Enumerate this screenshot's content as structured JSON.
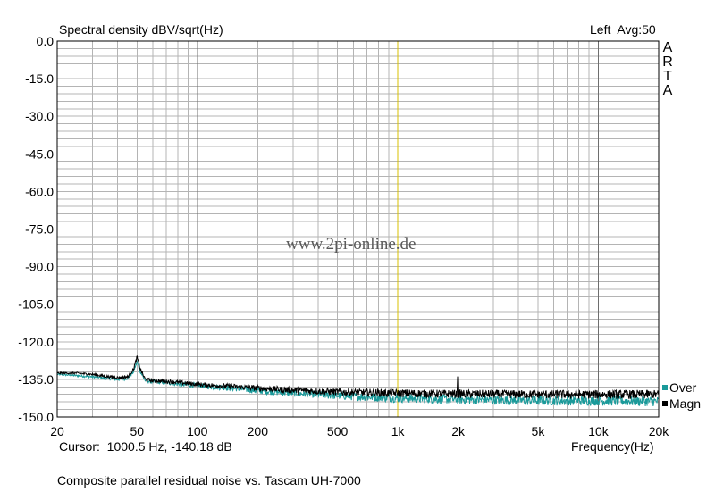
{
  "header": {
    "title": "Spectral density dBV/sqrt(Hz)",
    "channel": "Left  Avg:50"
  },
  "brand": [
    "A",
    "R",
    "T",
    "A"
  ],
  "watermark": "www.2pi-online.de",
  "cursor_readout": "Cursor:  1000.5 Hz, -140.18 dB",
  "caption": "Composite parallel residual noise vs. Tascam UH-7000",
  "legend": {
    "over": {
      "label": "Over",
      "color": "#1a9a9a"
    },
    "magn": {
      "label": "Magn",
      "color": "#000000"
    }
  },
  "colors": {
    "grid": "#b4b4b4",
    "grid_major": "#6e6e6e",
    "cursor": "#d8c000"
  },
  "chart_data": {
    "type": "line",
    "xscale": "log",
    "xlabel": "Frequency(Hz)",
    "ylabel": "Spectral density dBV/sqrt(Hz)",
    "xlim": [
      20,
      20000
    ],
    "ylim": [
      -150,
      0
    ],
    "x_ticks": [
      {
        "v": 20,
        "label": "20"
      },
      {
        "v": 50,
        "label": "50"
      },
      {
        "v": 100,
        "label": "100"
      },
      {
        "v": 200,
        "label": "200"
      },
      {
        "v": 500,
        "label": "500"
      },
      {
        "v": 1000,
        "label": "1k"
      },
      {
        "v": 2000,
        "label": "2k"
      },
      {
        "v": 5000,
        "label": "5k"
      },
      {
        "v": 10000,
        "label": "10k"
      },
      {
        "v": 20000,
        "label": "20k"
      }
    ],
    "y_ticks": [
      {
        "v": 0,
        "label": "0.0"
      },
      {
        "v": -15,
        "label": "-15.0"
      },
      {
        "v": -30,
        "label": "-30.0"
      },
      {
        "v": -45,
        "label": "-45.0"
      },
      {
        "v": -60,
        "label": "-60.0"
      },
      {
        "v": -75,
        "label": "-75.0"
      },
      {
        "v": -90,
        "label": "-90.0"
      },
      {
        "v": -105,
        "label": "-105.0"
      },
      {
        "v": -120,
        "label": "-120.0"
      },
      {
        "v": -135,
        "label": "-135.0"
      },
      {
        "v": -150,
        "label": "-150.0"
      }
    ],
    "cursor_x": 1000.5,
    "grid": true,
    "series": [
      {
        "name": "Over",
        "color": "#1a9a9a",
        "points": [
          [
            20,
            -133.0
          ],
          [
            25,
            -133.5
          ],
          [
            30,
            -134.0
          ],
          [
            35,
            -134.5
          ],
          [
            40,
            -135.0
          ],
          [
            45,
            -134.5
          ],
          [
            48,
            -132.0
          ],
          [
            50,
            -128.0
          ],
          [
            52,
            -132.0
          ],
          [
            55,
            -135.5
          ],
          [
            60,
            -136.0
          ],
          [
            70,
            -136.3
          ],
          [
            80,
            -136.8
          ],
          [
            100,
            -137.5
          ],
          [
            150,
            -138.5
          ],
          [
            200,
            -139.5
          ],
          [
            300,
            -140.5
          ],
          [
            500,
            -141.5
          ],
          [
            1000,
            -142.5
          ],
          [
            2000,
            -143.0
          ],
          [
            5000,
            -143.5
          ],
          [
            10000,
            -143.5
          ],
          [
            20000,
            -143.8
          ]
        ],
        "jitter": [
          [
            20,
            0.3
          ],
          [
            100,
            1.0
          ],
          [
            300,
            1.4
          ],
          [
            1000,
            1.8
          ],
          [
            20000,
            2.0
          ]
        ]
      },
      {
        "name": "Magn",
        "color": "#000000",
        "points": [
          [
            20,
            -132.5
          ],
          [
            25,
            -132.5
          ],
          [
            30,
            -133.0
          ],
          [
            35,
            -133.8
          ],
          [
            40,
            -134.3
          ],
          [
            45,
            -134.0
          ],
          [
            48,
            -131.0
          ],
          [
            50,
            -126.0
          ],
          [
            52,
            -131.0
          ],
          [
            55,
            -135.0
          ],
          [
            60,
            -135.5
          ],
          [
            70,
            -135.8
          ],
          [
            80,
            -136.2
          ],
          [
            100,
            -137.0
          ],
          [
            150,
            -137.8
          ],
          [
            200,
            -138.5
          ],
          [
            300,
            -139.3
          ],
          [
            500,
            -140.0
          ],
          [
            1000,
            -140.5
          ],
          [
            2000,
            -140.8
          ],
          [
            5000,
            -141.0
          ],
          [
            10000,
            -141.0
          ],
          [
            20000,
            -141.0
          ]
        ],
        "jitter": [
          [
            20,
            0.3
          ],
          [
            100,
            0.9
          ],
          [
            300,
            1.3
          ],
          [
            1000,
            1.6
          ],
          [
            20000,
            1.8
          ]
        ],
        "spikes": [
          [
            2000,
            -134.0
          ]
        ]
      }
    ]
  }
}
